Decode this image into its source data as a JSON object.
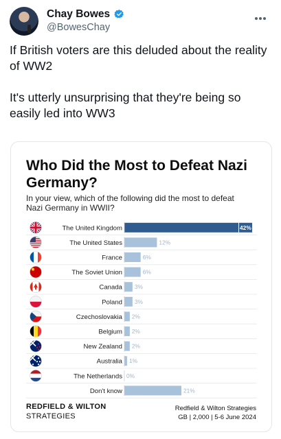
{
  "tweet": {
    "display_name": "Chay Bowes",
    "handle": "@BowesChay",
    "text_line1": "If British voters are this deluded about the reality of WW2",
    "text_line2": "It's utterly unsurprising that they're being so easily led into WW3"
  },
  "card": {
    "title": "Who Did the Most to Defeat Nazi Germany?",
    "subtitle": "In your view, which of the following did the most to defeat Nazi Germany in WWII?",
    "brand_line1": "REDFIELD & WILTON",
    "brand_line2": "STRATEGIES",
    "source_line1": "Redfield & Wilton Strategies",
    "source_line2": "GB | 2,000 | 5-6 June 2024"
  },
  "chart_data": {
    "type": "bar",
    "orientation": "horizontal",
    "categories": [
      "The United Kingdom",
      "The United States",
      "France",
      "The Soviet Union",
      "Canada",
      "Poland",
      "Czechoslovakia",
      "Belgium",
      "New Zealand",
      "Australia",
      "The Netherlands",
      "Don't know"
    ],
    "values": [
      42,
      12,
      6,
      6,
      3,
      3,
      2,
      2,
      2,
      1,
      0,
      21
    ],
    "value_labels": [
      "42%",
      "12%",
      "6%",
      "6%",
      "3%",
      "3%",
      "2%",
      "2%",
      "2%",
      "1%",
      "0%",
      "21%"
    ],
    "icons": [
      "flag-uk-icon",
      "flag-us-icon",
      "flag-france-icon",
      "flag-ussr-icon",
      "flag-canada-icon",
      "flag-poland-icon",
      "flag-czech-icon",
      "flag-belgium-icon",
      "flag-nz-icon",
      "flag-australia-icon",
      "flag-netherlands-icon",
      ""
    ],
    "xlim": [
      0,
      42
    ],
    "grid": true,
    "colors": {
      "highlight": "#2f5b8f",
      "bar": "#a9c2dc",
      "label_highlight": "#ffffff",
      "label": "#9fb6cf"
    }
  }
}
